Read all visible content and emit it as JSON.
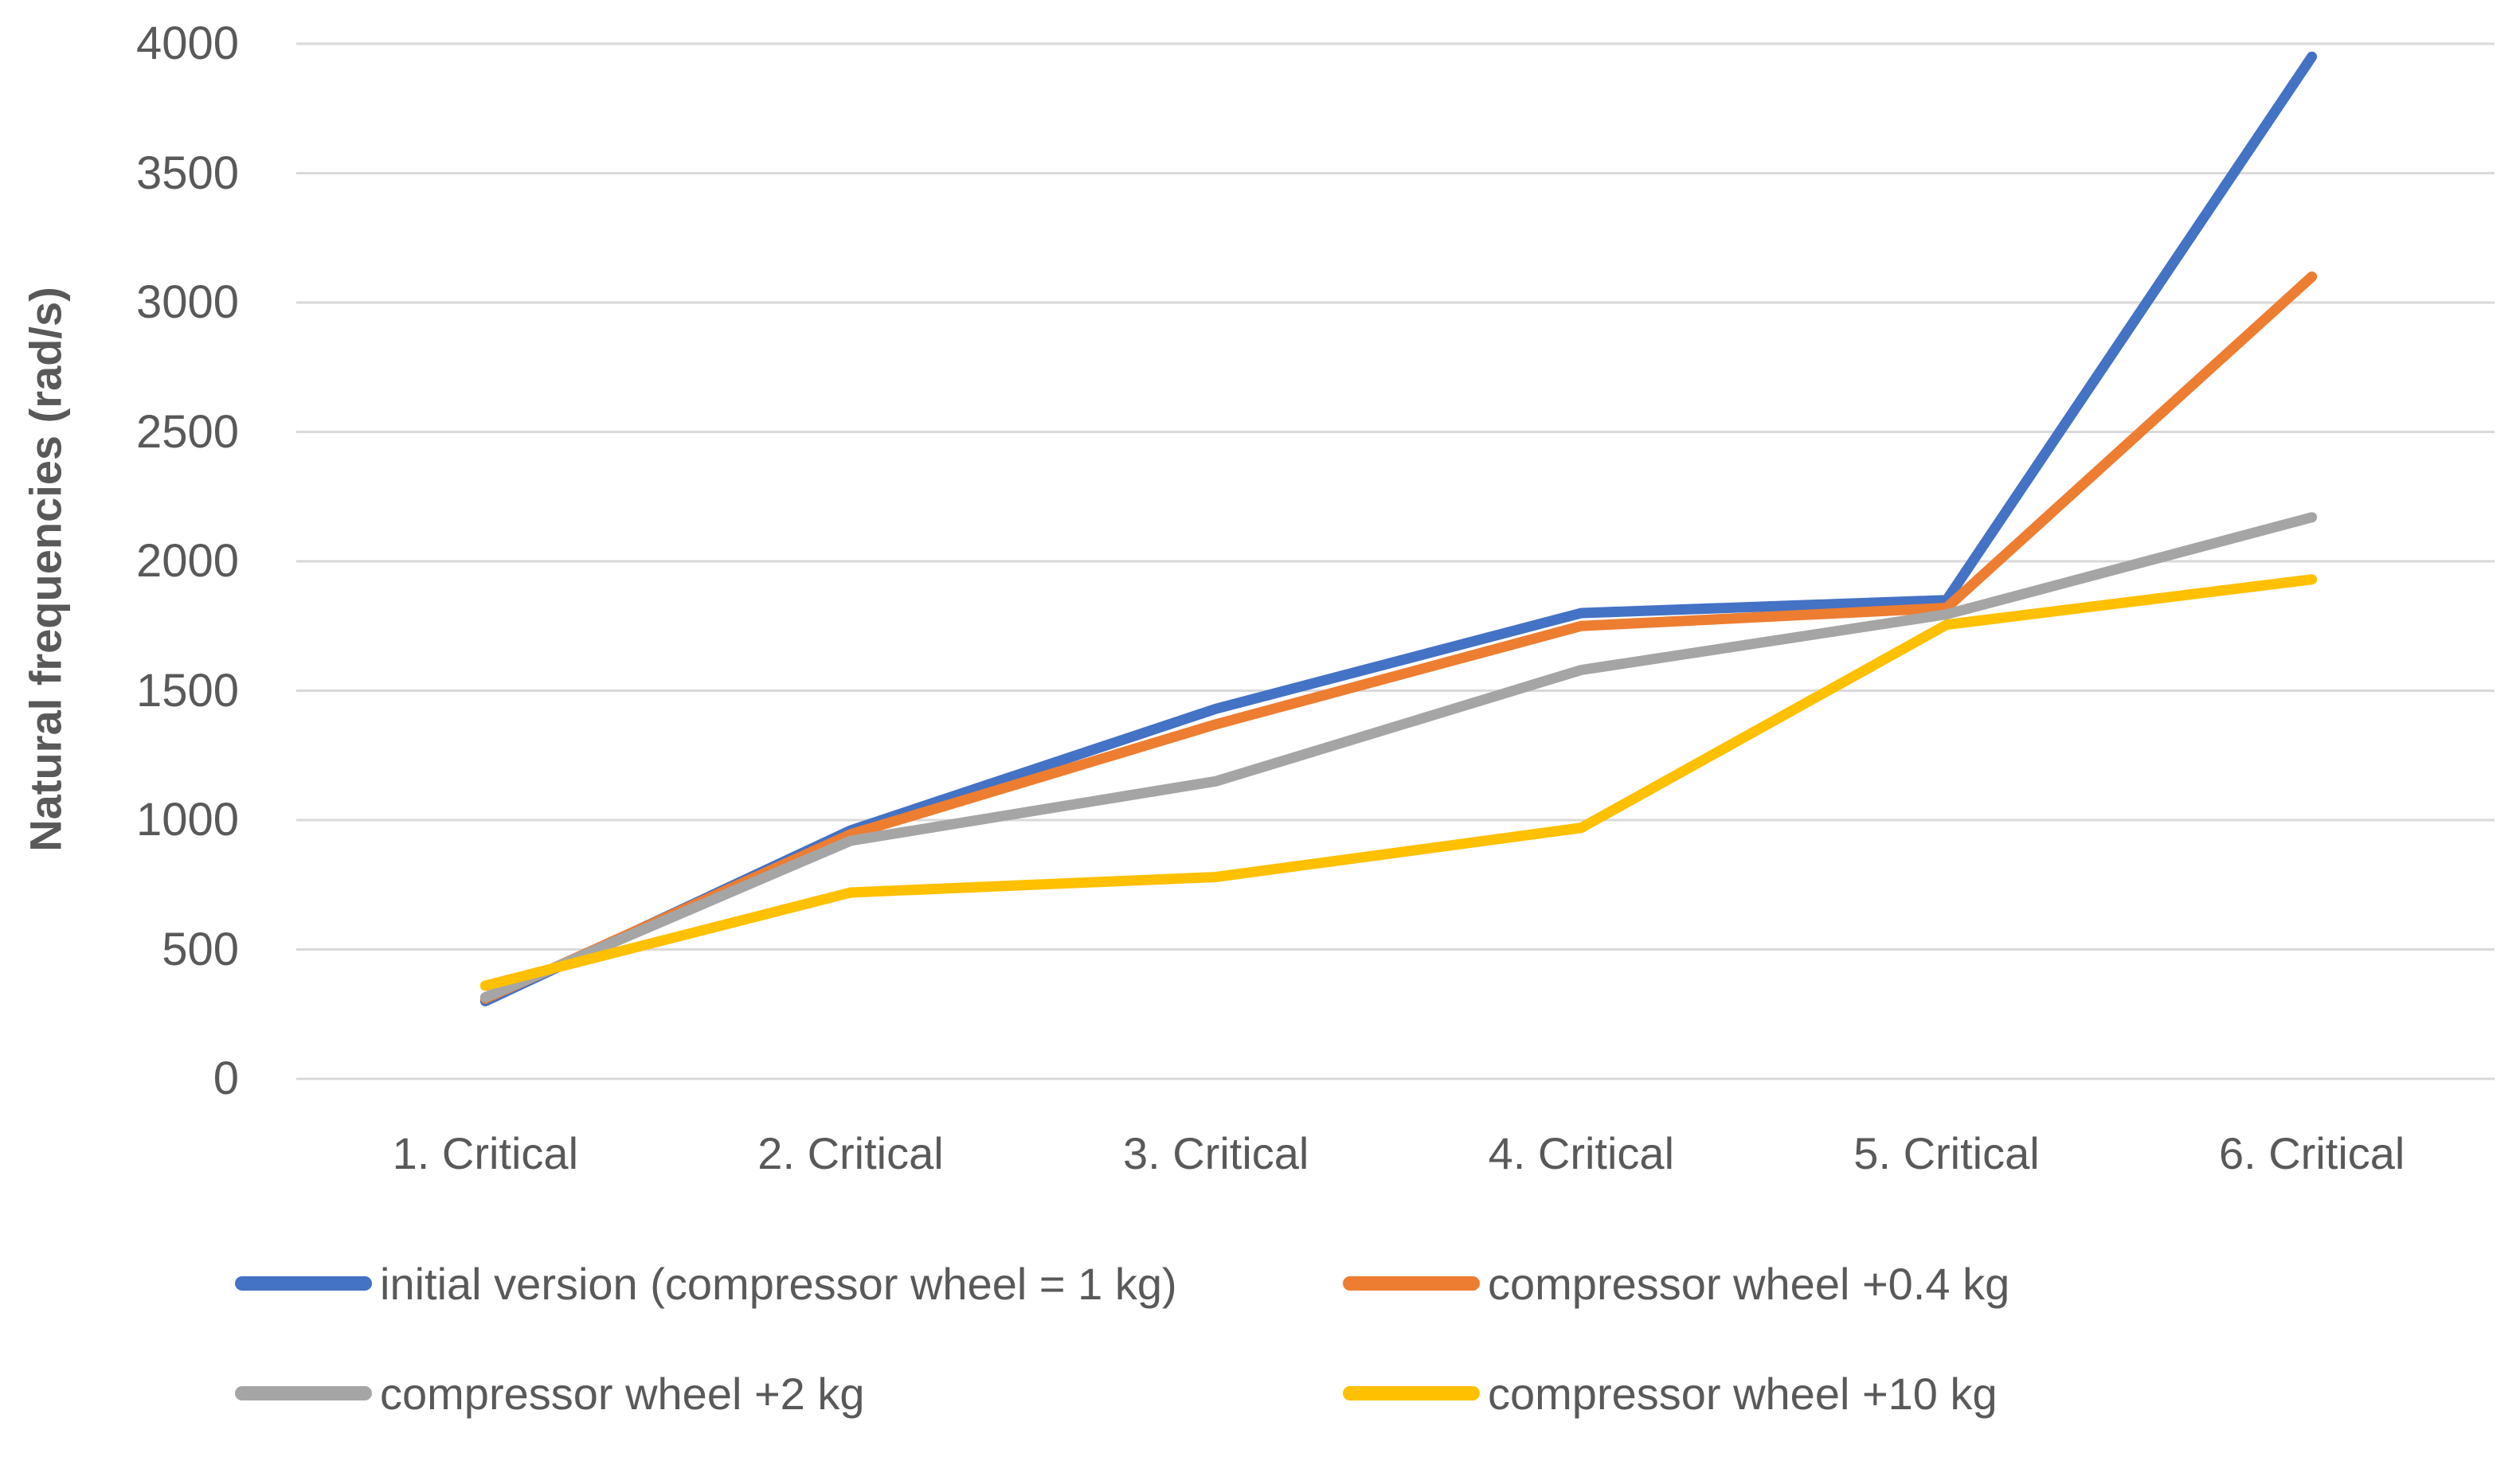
{
  "chart_data": {
    "type": "line",
    "title": "",
    "xlabel": "",
    "ylabel": "Natural frequencies (rad/s)",
    "ylim": [
      0,
      4000
    ],
    "ytick_labels": [
      "0",
      "500",
      "1000",
      "1500",
      "2000",
      "2500",
      "3000",
      "3500",
      "4000"
    ],
    "grid": true,
    "legend_position": "bottom",
    "categories": [
      "1. Critical",
      "2. Critical",
      "3. Critical",
      "4. Critical",
      "5. Critical",
      "6. Critical"
    ],
    "series": [
      {
        "name": "initial version (compressor wheel = 1 kg)",
        "color": "#4472C4",
        "values": [
          300,
          960,
          1430,
          1800,
          1850,
          3950
        ]
      },
      {
        "name": "compressor wheel +0.4 kg",
        "color": "#ED7D31",
        "values": [
          310,
          945,
          1370,
          1750,
          1820,
          3100
        ]
      },
      {
        "name": "compressor wheel +2 kg",
        "color": "#A5A5A5",
        "values": [
          315,
          920,
          1150,
          1580,
          1795,
          2170
        ]
      },
      {
        "name": "compressor wheel +10 kg",
        "color": "#FFC000",
        "values": [
          360,
          720,
          780,
          970,
          1755,
          1930
        ]
      }
    ],
    "colors": {
      "axis_text": "#595959",
      "gridline": "#D9D9D9"
    }
  }
}
